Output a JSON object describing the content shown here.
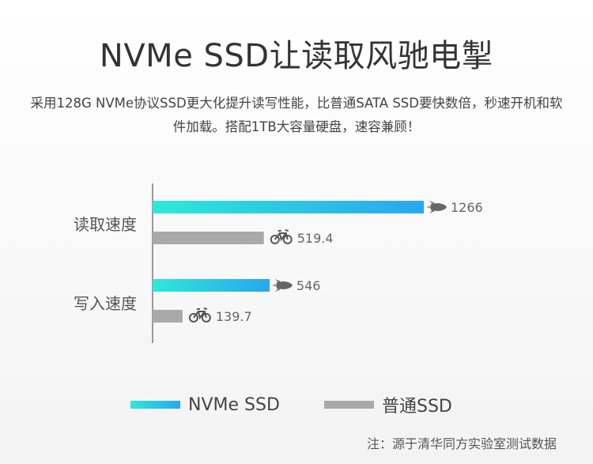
{
  "title": "NVMe SSD让读取风驰电掣",
  "subtitle": "采用128G NVMe协议SSD更大化提升读写性能，比普通SATA SSD要快数倍，秒速开机和软件加载。搭配1TB大容量硬盘，速容兼顾！",
  "note": "注：源于清华同方实验室测试数据",
  "colors": {
    "nvme_start": "#2ee8d8",
    "nvme_end": "#2aa6ee",
    "sata": "#a9a9a9",
    "axis": "#9a9a9a",
    "label": "#555555"
  },
  "chart_data": {
    "type": "bar",
    "orientation": "horizontal",
    "categories": [
      "读取速度",
      "写入速度"
    ],
    "series": [
      {
        "name": "NVMe SSD",
        "values": [
          1266,
          546
        ],
        "icon": "rocket-icon"
      },
      {
        "name": "普通SSD",
        "values": [
          519.4,
          139.7
        ],
        "icon": "bicycle-icon"
      }
    ],
    "xlim": [
      0,
      1300
    ],
    "grid": false,
    "legend": "bottom"
  }
}
